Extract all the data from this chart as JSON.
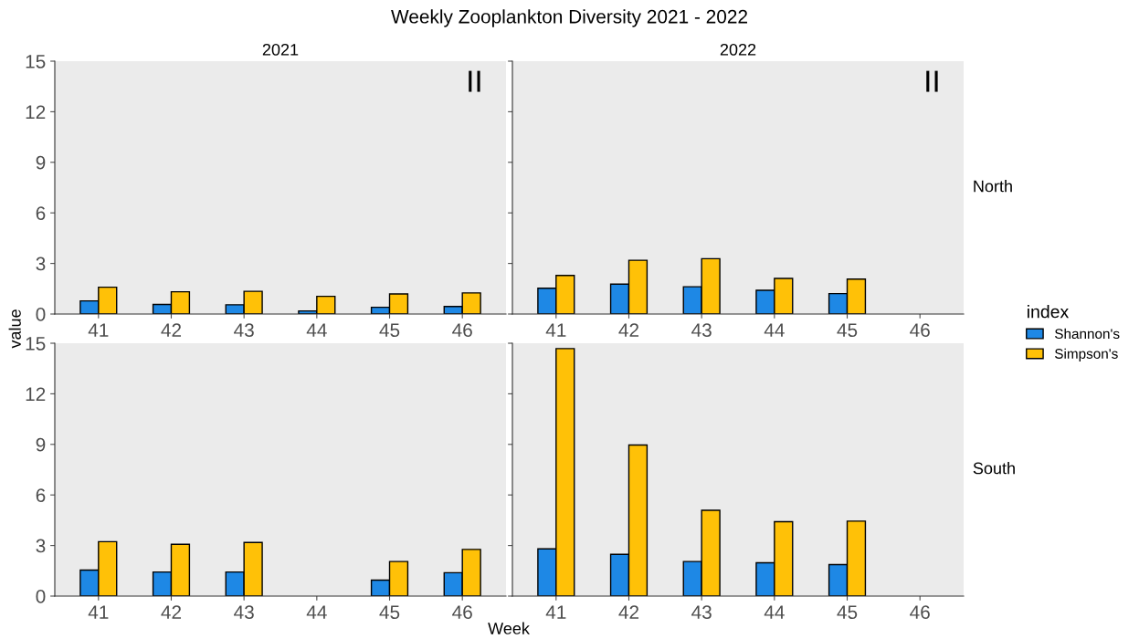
{
  "chart_data": [
    {
      "type": "bar",
      "title": "Weekly Zooplankton Diversity 2021 - 2022",
      "subtitle": "2021",
      "ylabel": "value",
      "legend_title": "index",
      "legend": "right",
      "categories": [
        "41",
        "42",
        "43",
        "44",
        "45",
        "46"
      ],
      "ylim": [
        0,
        15
      ],
      "yticks": [
        0,
        3,
        6,
        9,
        12,
        15
      ],
      "annotations": [
        "II"
      ],
      "series": [
        {
          "name": "Shannon's",
          "color": "#1e88e5",
          "values": [
            0.78,
            0.57,
            0.55,
            0.18,
            0.4,
            0.45
          ]
        },
        {
          "name": "Simpson's",
          "color": "#ffc107",
          "values": [
            1.59,
            1.32,
            1.35,
            1.05,
            1.19,
            1.25
          ]
        }
      ]
    },
    {
      "type": "bar",
      "subtitle": "2022",
      "y2label": "North",
      "categories": [
        "41",
        "42",
        "43",
        "44",
        "45",
        "46"
      ],
      "ylim": [
        0,
        15
      ],
      "yticks": [
        0,
        3,
        6,
        9,
        12,
        15
      ],
      "tick_labels": "x",
      "annotations": [
        "II"
      ],
      "series": [
        {
          "color": "#1e88e5",
          "values": [
            1.53,
            1.77,
            1.62,
            1.41,
            1.21,
            null
          ]
        },
        {
          "color": "#ffc107",
          "values": [
            2.29,
            3.19,
            3.28,
            2.11,
            2.07,
            null
          ]
        }
      ]
    },
    {
      "type": "bar",
      "xlabel": "Week",
      "categories": [
        "41",
        "42",
        "43",
        "44",
        "45",
        "46"
      ],
      "ylim": [
        0,
        15
      ],
      "yticks": [
        0,
        3,
        6,
        9,
        12,
        15
      ],
      "series": [
        {
          "color": "#1e88e5",
          "values": [
            1.54,
            1.43,
            1.43,
            null,
            0.95,
            1.39
          ]
        },
        {
          "color": "#ffc107",
          "values": [
            3.23,
            3.07,
            3.18,
            null,
            2.05,
            2.77
          ]
        }
      ]
    },
    {
      "type": "bar",
      "y2label": "South",
      "categories": [
        "41",
        "42",
        "43",
        "44",
        "45",
        "46"
      ],
      "ylim": [
        0,
        15
      ],
      "yticks": [
        0,
        3,
        6,
        9,
        12,
        15
      ],
      "tick_labels": "x",
      "series": [
        {
          "color": "#1e88e5",
          "values": [
            2.8,
            2.48,
            2.05,
            1.98,
            1.87,
            null
          ]
        },
        {
          "color": "#ffc107",
          "values": [
            14.68,
            8.96,
            5.09,
            4.41,
            4.45,
            null
          ]
        }
      ]
    }
  ]
}
